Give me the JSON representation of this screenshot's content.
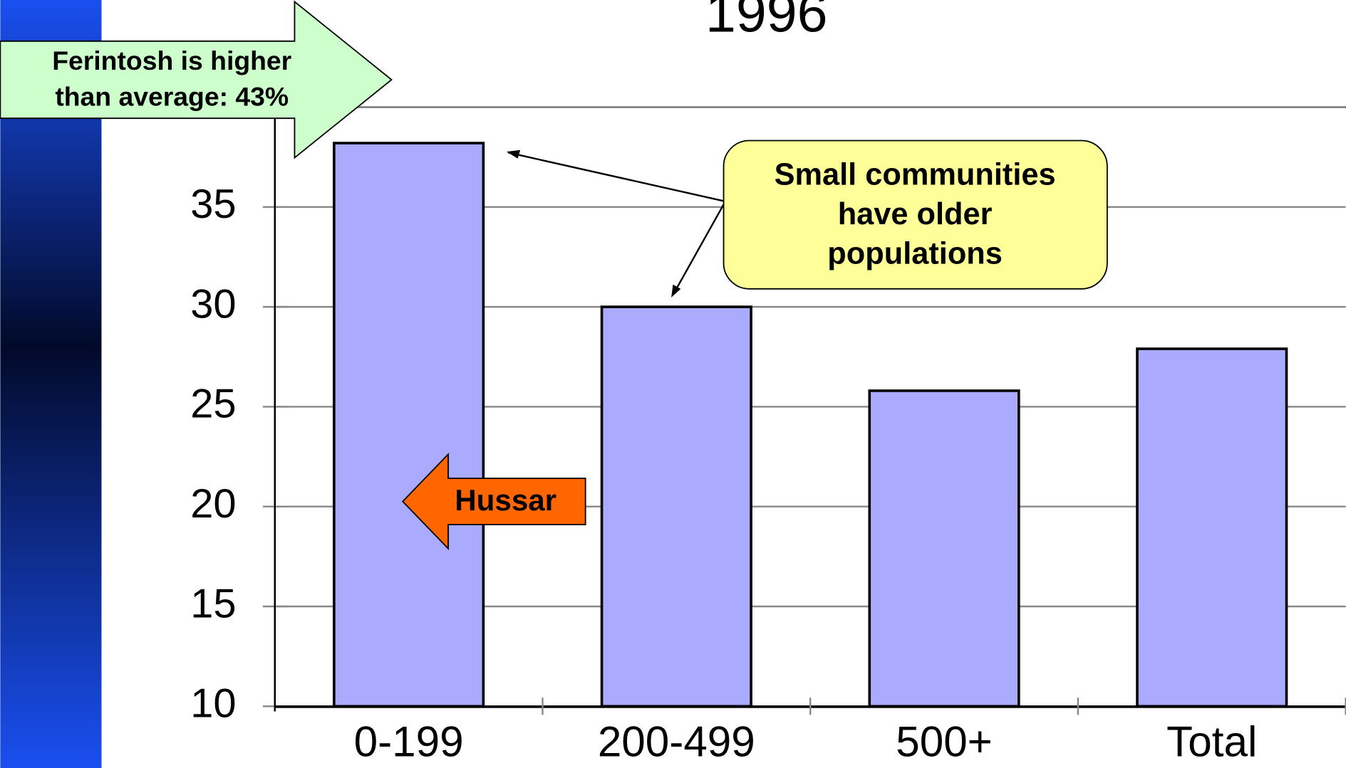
{
  "chart_data": {
    "type": "bar",
    "title": "1996",
    "categories": [
      "0-199",
      "200-499",
      "500+",
      "Total"
    ],
    "values": [
      38.2,
      30.0,
      25.8,
      27.9
    ],
    "color": "#aaaaff",
    "ylim": [
      10,
      40
    ],
    "yticks": [
      10,
      15,
      20,
      25,
      30,
      35,
      40
    ],
    "grid": true,
    "annotations": {
      "ferintosh": [
        "Ferintosh is higher",
        "than average: 43%"
      ],
      "small": [
        "Small communities",
        "have older",
        "populations"
      ],
      "hussar": "Hussar"
    }
  }
}
